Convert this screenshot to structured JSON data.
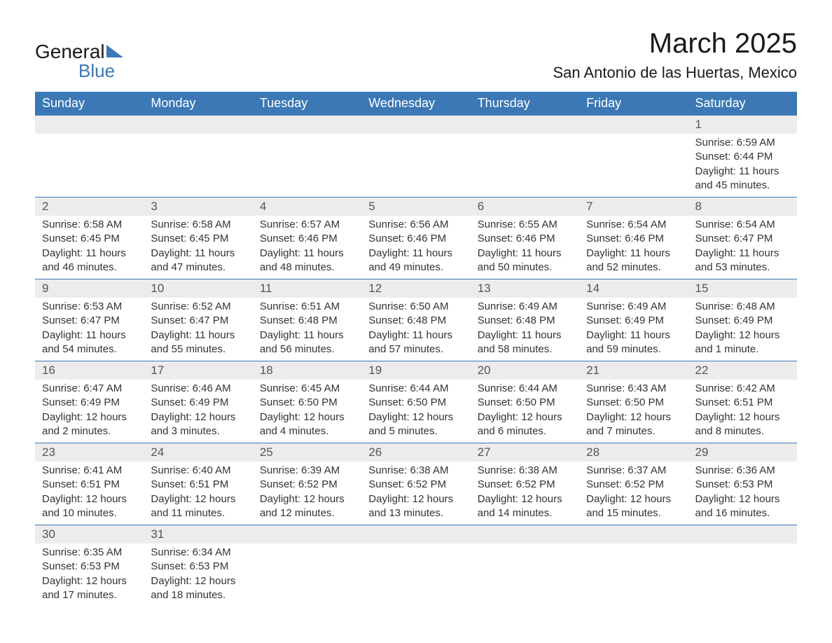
{
  "logo": {
    "text1": "General",
    "text2": "Blue"
  },
  "header": {
    "title": "March 2025",
    "subtitle": "San Antonio de las Huertas, Mexico"
  },
  "colors": {
    "header_bg": "#3b78b5",
    "header_fg": "#ffffff",
    "daynum_bg": "#ececec",
    "row_border": "#3b78b5",
    "text": "#333333"
  },
  "fonts": {
    "title_size_pt": 30,
    "subtitle_size_pt": 17,
    "header_size_pt": 14,
    "body_size_pt": 11
  },
  "calendar": {
    "columns": [
      "Sunday",
      "Monday",
      "Tuesday",
      "Wednesday",
      "Thursday",
      "Friday",
      "Saturday"
    ],
    "weeks": [
      [
        null,
        null,
        null,
        null,
        null,
        null,
        {
          "day": "1",
          "sunrise": "6:59 AM",
          "sunset": "6:44 PM",
          "daylight": "11 hours and 45 minutes."
        }
      ],
      [
        {
          "day": "2",
          "sunrise": "6:58 AM",
          "sunset": "6:45 PM",
          "daylight": "11 hours and 46 minutes."
        },
        {
          "day": "3",
          "sunrise": "6:58 AM",
          "sunset": "6:45 PM",
          "daylight": "11 hours and 47 minutes."
        },
        {
          "day": "4",
          "sunrise": "6:57 AM",
          "sunset": "6:46 PM",
          "daylight": "11 hours and 48 minutes."
        },
        {
          "day": "5",
          "sunrise": "6:56 AM",
          "sunset": "6:46 PM",
          "daylight": "11 hours and 49 minutes."
        },
        {
          "day": "6",
          "sunrise": "6:55 AM",
          "sunset": "6:46 PM",
          "daylight": "11 hours and 50 minutes."
        },
        {
          "day": "7",
          "sunrise": "6:54 AM",
          "sunset": "6:46 PM",
          "daylight": "11 hours and 52 minutes."
        },
        {
          "day": "8",
          "sunrise": "6:54 AM",
          "sunset": "6:47 PM",
          "daylight": "11 hours and 53 minutes."
        }
      ],
      [
        {
          "day": "9",
          "sunrise": "6:53 AM",
          "sunset": "6:47 PM",
          "daylight": "11 hours and 54 minutes."
        },
        {
          "day": "10",
          "sunrise": "6:52 AM",
          "sunset": "6:47 PM",
          "daylight": "11 hours and 55 minutes."
        },
        {
          "day": "11",
          "sunrise": "6:51 AM",
          "sunset": "6:48 PM",
          "daylight": "11 hours and 56 minutes."
        },
        {
          "day": "12",
          "sunrise": "6:50 AM",
          "sunset": "6:48 PM",
          "daylight": "11 hours and 57 minutes."
        },
        {
          "day": "13",
          "sunrise": "6:49 AM",
          "sunset": "6:48 PM",
          "daylight": "11 hours and 58 minutes."
        },
        {
          "day": "14",
          "sunrise": "6:49 AM",
          "sunset": "6:49 PM",
          "daylight": "11 hours and 59 minutes."
        },
        {
          "day": "15",
          "sunrise": "6:48 AM",
          "sunset": "6:49 PM",
          "daylight": "12 hours and 1 minute."
        }
      ],
      [
        {
          "day": "16",
          "sunrise": "6:47 AM",
          "sunset": "6:49 PM",
          "daylight": "12 hours and 2 minutes."
        },
        {
          "day": "17",
          "sunrise": "6:46 AM",
          "sunset": "6:49 PM",
          "daylight": "12 hours and 3 minutes."
        },
        {
          "day": "18",
          "sunrise": "6:45 AM",
          "sunset": "6:50 PM",
          "daylight": "12 hours and 4 minutes."
        },
        {
          "day": "19",
          "sunrise": "6:44 AM",
          "sunset": "6:50 PM",
          "daylight": "12 hours and 5 minutes."
        },
        {
          "day": "20",
          "sunrise": "6:44 AM",
          "sunset": "6:50 PM",
          "daylight": "12 hours and 6 minutes."
        },
        {
          "day": "21",
          "sunrise": "6:43 AM",
          "sunset": "6:50 PM",
          "daylight": "12 hours and 7 minutes."
        },
        {
          "day": "22",
          "sunrise": "6:42 AM",
          "sunset": "6:51 PM",
          "daylight": "12 hours and 8 minutes."
        }
      ],
      [
        {
          "day": "23",
          "sunrise": "6:41 AM",
          "sunset": "6:51 PM",
          "daylight": "12 hours and 10 minutes."
        },
        {
          "day": "24",
          "sunrise": "6:40 AM",
          "sunset": "6:51 PM",
          "daylight": "12 hours and 11 minutes."
        },
        {
          "day": "25",
          "sunrise": "6:39 AM",
          "sunset": "6:52 PM",
          "daylight": "12 hours and 12 minutes."
        },
        {
          "day": "26",
          "sunrise": "6:38 AM",
          "sunset": "6:52 PM",
          "daylight": "12 hours and 13 minutes."
        },
        {
          "day": "27",
          "sunrise": "6:38 AM",
          "sunset": "6:52 PM",
          "daylight": "12 hours and 14 minutes."
        },
        {
          "day": "28",
          "sunrise": "6:37 AM",
          "sunset": "6:52 PM",
          "daylight": "12 hours and 15 minutes."
        },
        {
          "day": "29",
          "sunrise": "6:36 AM",
          "sunset": "6:53 PM",
          "daylight": "12 hours and 16 minutes."
        }
      ],
      [
        {
          "day": "30",
          "sunrise": "6:35 AM",
          "sunset": "6:53 PM",
          "daylight": "12 hours and 17 minutes."
        },
        {
          "day": "31",
          "sunrise": "6:34 AM",
          "sunset": "6:53 PM",
          "daylight": "12 hours and 18 minutes."
        },
        null,
        null,
        null,
        null,
        null
      ]
    ],
    "labels": {
      "sunrise": "Sunrise:",
      "sunset": "Sunset:",
      "daylight": "Daylight:"
    }
  }
}
